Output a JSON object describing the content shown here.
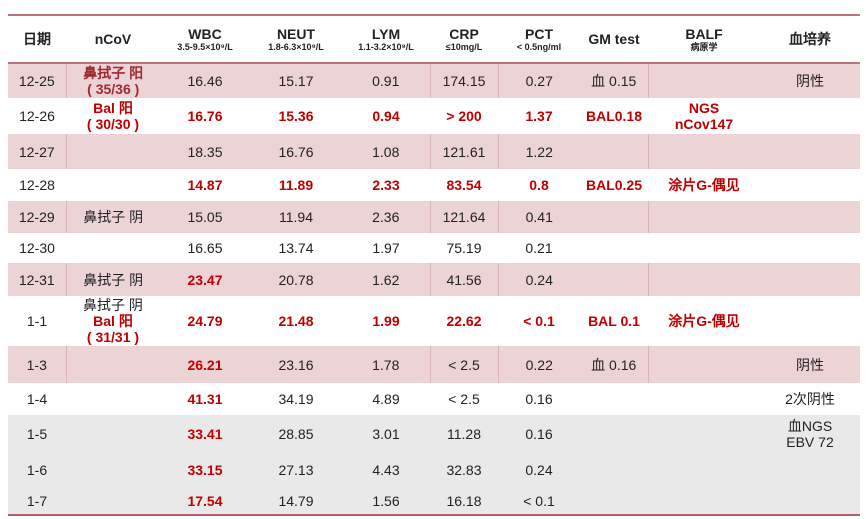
{
  "colors": {
    "accent_red": "#c00000",
    "row_pink": "#ebd3d6",
    "row_grey": "#e9e9e9",
    "rule": "#c0707a"
  },
  "headers": [
    {
      "title": "日期",
      "unit": ""
    },
    {
      "title": "nCoV",
      "unit": ""
    },
    {
      "title": "WBC",
      "unit": "3.5-9.5×10⁹/L"
    },
    {
      "title": "NEUT",
      "unit": "1.8-6.3×10⁹/L"
    },
    {
      "title": "LYM",
      "unit": "1.1-3.2×10⁹/L"
    },
    {
      "title": "CRP",
      "unit": "≤10mg/L"
    },
    {
      "title": "PCT",
      "unit": "< 0.5ng/ml"
    },
    {
      "title": "GM test",
      "unit": ""
    },
    {
      "title": "BALF",
      "unit": "病原学"
    },
    {
      "title": "血培养",
      "unit": ""
    }
  ],
  "rows": [
    {
      "bg": "pink",
      "h": 35,
      "cells": [
        {
          "t": "12-25"
        },
        {
          "t": "鼻拭子 阳\n( 35/36 )",
          "s": "dred"
        },
        {
          "t": "16.46"
        },
        {
          "t": "15.17"
        },
        {
          "t": "0.91"
        },
        {
          "t": "174.15"
        },
        {
          "t": "0.27"
        },
        {
          "t": "血 0.15"
        },
        {
          "t": ""
        },
        {
          "t": "阴性"
        }
      ]
    },
    {
      "bg": "white",
      "h": 36,
      "cells": [
        {
          "t": "12-26"
        },
        {
          "t": "Bal 阳\n( 30/30 )",
          "s": "red"
        },
        {
          "t": "16.76",
          "s": "red"
        },
        {
          "t": "15.36",
          "s": "red"
        },
        {
          "t": "0.94",
          "s": "red"
        },
        {
          "t": "> 200",
          "s": "red"
        },
        {
          "t": "1.37",
          "s": "red"
        },
        {
          "t": "BAL0.18",
          "s": "red"
        },
        {
          "t": "NGS\nnCov147",
          "s": "red"
        },
        {
          "t": ""
        }
      ]
    },
    {
      "bg": "pink",
      "h": 35,
      "cells": [
        {
          "t": "12-27"
        },
        {
          "t": ""
        },
        {
          "t": "18.35"
        },
        {
          "t": "16.76"
        },
        {
          "t": "1.08"
        },
        {
          "t": "121.61"
        },
        {
          "t": "1.22"
        },
        {
          "t": ""
        },
        {
          "t": ""
        },
        {
          "t": ""
        }
      ]
    },
    {
      "bg": "white",
      "h": 32,
      "cells": [
        {
          "t": "12-28"
        },
        {
          "t": ""
        },
        {
          "t": "14.87",
          "s": "red"
        },
        {
          "t": "11.89",
          "s": "red"
        },
        {
          "t": "2.33",
          "s": "red"
        },
        {
          "t": "83.54",
          "s": "red"
        },
        {
          "t": "0.8",
          "s": "red"
        },
        {
          "t": "BAL0.25",
          "s": "red"
        },
        {
          "t": "涂片G-偶见",
          "s": "red"
        },
        {
          "t": ""
        }
      ]
    },
    {
      "bg": "pink",
      "h": 32,
      "cells": [
        {
          "t": "12-29"
        },
        {
          "t": "鼻拭子 阴"
        },
        {
          "t": "15.05"
        },
        {
          "t": "11.94"
        },
        {
          "t": "2.36"
        },
        {
          "t": "121.64"
        },
        {
          "t": "0.41"
        },
        {
          "t": ""
        },
        {
          "t": ""
        },
        {
          "t": ""
        }
      ]
    },
    {
      "bg": "white",
      "h": 30,
      "cells": [
        {
          "t": "12-30"
        },
        {
          "t": ""
        },
        {
          "t": "16.65"
        },
        {
          "t": "13.74"
        },
        {
          "t": "1.97"
        },
        {
          "t": "75.19"
        },
        {
          "t": "0.21"
        },
        {
          "t": ""
        },
        {
          "t": ""
        },
        {
          "t": ""
        }
      ]
    },
    {
      "bg": "pink",
      "h": 33,
      "cells": [
        {
          "t": "12-31"
        },
        {
          "t": "鼻拭子 阴"
        },
        {
          "t": "23.47",
          "s": "red"
        },
        {
          "t": "20.78"
        },
        {
          "t": "1.62"
        },
        {
          "t": "41.56"
        },
        {
          "t": "0.24"
        },
        {
          "t": ""
        },
        {
          "t": ""
        },
        {
          "t": ""
        }
      ]
    },
    {
      "bg": "white",
      "h": 50,
      "cells": [
        {
          "t": "1-1"
        },
        {
          "t": "鼻拭子 阴\nBal 阳\n( 31/31 )",
          "s": "mix"
        },
        {
          "t": "24.79",
          "s": "red"
        },
        {
          "t": "21.48",
          "s": "red"
        },
        {
          "t": "1.99",
          "s": "red"
        },
        {
          "t": "22.62",
          "s": "red"
        },
        {
          "t": "< 0.1",
          "s": "red"
        },
        {
          "t": "BAL 0.1",
          "s": "red"
        },
        {
          "t": "涂片G-偶见",
          "s": "red"
        },
        {
          "t": ""
        }
      ]
    },
    {
      "bg": "pink",
      "h": 37,
      "cells": [
        {
          "t": "1-3"
        },
        {
          "t": ""
        },
        {
          "t": "26.21",
          "s": "red"
        },
        {
          "t": "23.16"
        },
        {
          "t": "1.78"
        },
        {
          "t": "< 2.5"
        },
        {
          "t": "0.22"
        },
        {
          "t": "血 0.16"
        },
        {
          "t": ""
        },
        {
          "t": "阴性"
        }
      ]
    },
    {
      "bg": "white",
      "h": 32,
      "cells": [
        {
          "t": "1-4"
        },
        {
          "t": ""
        },
        {
          "t": "41.31",
          "s": "red"
        },
        {
          "t": "34.19"
        },
        {
          "t": "4.89"
        },
        {
          "t": "< 2.5"
        },
        {
          "t": "0.16"
        },
        {
          "t": ""
        },
        {
          "t": ""
        },
        {
          "t": "2次阴性"
        }
      ]
    },
    {
      "bg": "grey",
      "h": 38,
      "cells": [
        {
          "t": "1-5"
        },
        {
          "t": ""
        },
        {
          "t": "33.41",
          "s": "red"
        },
        {
          "t": "28.85"
        },
        {
          "t": "3.01"
        },
        {
          "t": "11.28"
        },
        {
          "t": "0.16"
        },
        {
          "t": ""
        },
        {
          "t": ""
        },
        {
          "t": "血NGS\nEBV 72"
        }
      ]
    },
    {
      "bg": "grey",
      "h": 34,
      "cells": [
        {
          "t": "1-6"
        },
        {
          "t": ""
        },
        {
          "t": "33.15",
          "s": "red"
        },
        {
          "t": "27.13"
        },
        {
          "t": "4.43"
        },
        {
          "t": "32.83"
        },
        {
          "t": "0.24"
        },
        {
          "t": ""
        },
        {
          "t": ""
        },
        {
          "t": ""
        }
      ]
    },
    {
      "bg": "grey",
      "h": 27,
      "cells": [
        {
          "t": "1-7"
        },
        {
          "t": ""
        },
        {
          "t": "17.54",
          "s": "red"
        },
        {
          "t": "14.79"
        },
        {
          "t": "1.56"
        },
        {
          "t": "16.18"
        },
        {
          "t": "< 0.1"
        },
        {
          "t": ""
        },
        {
          "t": ""
        },
        {
          "t": ""
        }
      ]
    }
  ]
}
